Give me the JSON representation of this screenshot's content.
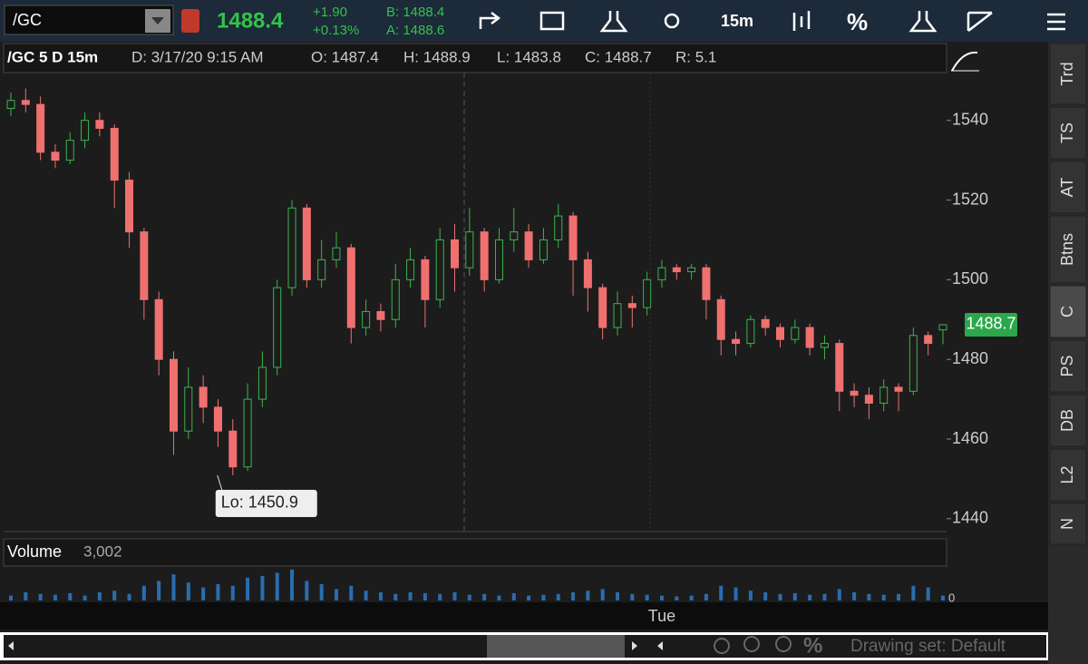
{
  "toolbar": {
    "symbol": "/GC",
    "last": "1488.4",
    "change": "+1.90",
    "change_pct": "+0.13%",
    "bid": "B: 1488.4",
    "ask": "A: 1488.6",
    "timeframe": "15m",
    "percent": "%"
  },
  "header": {
    "title": "/GC 5 D 15m",
    "date": "D: 3/17/20 9:15 AM",
    "open": "O: 1487.4",
    "high": "H: 1488.9",
    "low": "L: 1483.8",
    "close": "C: 1488.7",
    "range": "R: 5.1"
  },
  "sidebar": [
    "Trd",
    "TS",
    "AT",
    "Btns",
    "C",
    "PS",
    "DB",
    "L2",
    "N"
  ],
  "footer": {
    "zoom_pct": "%",
    "drawing_set": "Drawing set: Default"
  },
  "chart_data": {
    "type": "candlestick",
    "categories": [
      null,
      null,
      null,
      null,
      null,
      null,
      null,
      null,
      null,
      null,
      null,
      null,
      null,
      null,
      null,
      null,
      null,
      null,
      null,
      null,
      null,
      null,
      null,
      null,
      null,
      null,
      null,
      null,
      null,
      null,
      null,
      null,
      null,
      null,
      null,
      null,
      null,
      null,
      null,
      null,
      null,
      null,
      null,
      null,
      "Tue",
      null,
      null,
      null,
      null,
      null,
      null,
      null,
      null,
      null,
      null,
      null,
      null,
      null,
      null,
      null,
      null,
      null,
      null,
      null
    ],
    "open": [
      1543,
      1545,
      1544,
      1532,
      1530,
      1535,
      1540,
      1538,
      1525,
      1512,
      1495,
      1480,
      1462,
      1473,
      1468,
      1462,
      1453,
      1470,
      1478,
      1498,
      1518,
      1500,
      1505,
      1508,
      1488,
      1492,
      1490,
      1500,
      1505,
      1495,
      1510,
      1503,
      1512,
      1500,
      1510,
      1512,
      1505,
      1510,
      1516,
      1505,
      1498,
      1488,
      1494,
      1493,
      1500,
      1503,
      1502,
      1503,
      1495,
      1485,
      1484,
      1490,
      1488,
      1485,
      1488,
      1483,
      1484,
      1472,
      1471,
      1469,
      1473,
      1472,
      1486,
      1487.4
    ],
    "high": [
      1547,
      1548,
      1546,
      1534,
      1537,
      1542,
      1542,
      1539,
      1527,
      1513,
      1497,
      1482,
      1478,
      1476,
      1470,
      1465,
      1474,
      1482,
      1500,
      1520,
      1519,
      1510,
      1512,
      1509,
      1495,
      1494,
      1504,
      1508,
      1506,
      1513,
      1514,
      1518,
      1513,
      1513,
      1518,
      1514,
      1513,
      1519,
      1517,
      1507,
      1499,
      1497,
      1496,
      1502,
      1505,
      1504,
      1504,
      1504,
      1496,
      1487,
      1491,
      1491,
      1489,
      1490,
      1489,
      1486,
      1485,
      1474,
      1473,
      1475,
      1474,
      1488,
      1487,
      1488.9
    ],
    "low": [
      1541,
      1542,
      1530,
      1528,
      1529,
      1533,
      1536,
      1518,
      1508,
      1490,
      1476,
      1456,
      1460,
      1464,
      1458,
      1450.9,
      1452,
      1468,
      1476,
      1496,
      1498,
      1498,
      1503,
      1484,
      1486,
      1487,
      1488,
      1498,
      1488,
      1493,
      1497,
      1501,
      1497,
      1499,
      1507,
      1503,
      1504,
      1508,
      1496,
      1492,
      1485,
      1486,
      1488,
      1491,
      1498,
      1500,
      1500,
      1490,
      1481,
      1481,
      1483,
      1486,
      1483,
      1484,
      1481,
      1480,
      1467,
      1468,
      1465,
      1467,
      1467,
      1471,
      1481,
      1483.8
    ],
    "close": [
      1545,
      1544,
      1532,
      1530,
      1535,
      1540,
      1538,
      1525,
      1512,
      1495,
      1480,
      1462,
      1473,
      1468,
      1462,
      1453,
      1470,
      1478,
      1498,
      1518,
      1500,
      1505,
      1508,
      1488,
      1492,
      1490,
      1500,
      1505,
      1495,
      1510,
      1503,
      1512,
      1500,
      1510,
      1512,
      1505,
      1510,
      1516,
      1505,
      1498,
      1488,
      1494,
      1493,
      1500,
      1503,
      1502,
      1503,
      1495,
      1485,
      1484,
      1490,
      1488,
      1485,
      1488,
      1483,
      1484,
      1472,
      1471,
      1469,
      1473,
      1472,
      1486,
      1484,
      1488.7
    ],
    "up_color": "#3cb44b",
    "down_color": "#f07070",
    "ylim": [
      1437,
      1552
    ],
    "yticks": [
      1440,
      1460,
      1480,
      1500,
      1520,
      1540
    ],
    "annotation": {
      "text": "Lo: 1450.9",
      "index": 15
    },
    "volume": {
      "name": "Volume",
      "label": "3,002",
      "color": "#2a6cb0",
      "ylim": [
        0,
        20000
      ],
      "yticks": [
        0
      ],
      "values": [
        3000,
        5000,
        4000,
        3500,
        4500,
        3000,
        5000,
        6000,
        4000,
        9000,
        12000,
        16000,
        11000,
        8000,
        10000,
        9000,
        14000,
        15000,
        17000,
        19000,
        12000,
        10000,
        7000,
        9000,
        6000,
        5000,
        4000,
        5000,
        4500,
        4000,
        5000,
        3500,
        4000,
        3000,
        4500,
        3000,
        3500,
        4000,
        5000,
        6000,
        7000,
        5000,
        4000,
        3500,
        3000,
        2500,
        3000,
        4000,
        9000,
        8000,
        6000,
        5000,
        4000,
        4500,
        3500,
        4000,
        7000,
        5000,
        4000,
        3500,
        4000,
        9000,
        8000,
        3002
      ]
    }
  }
}
